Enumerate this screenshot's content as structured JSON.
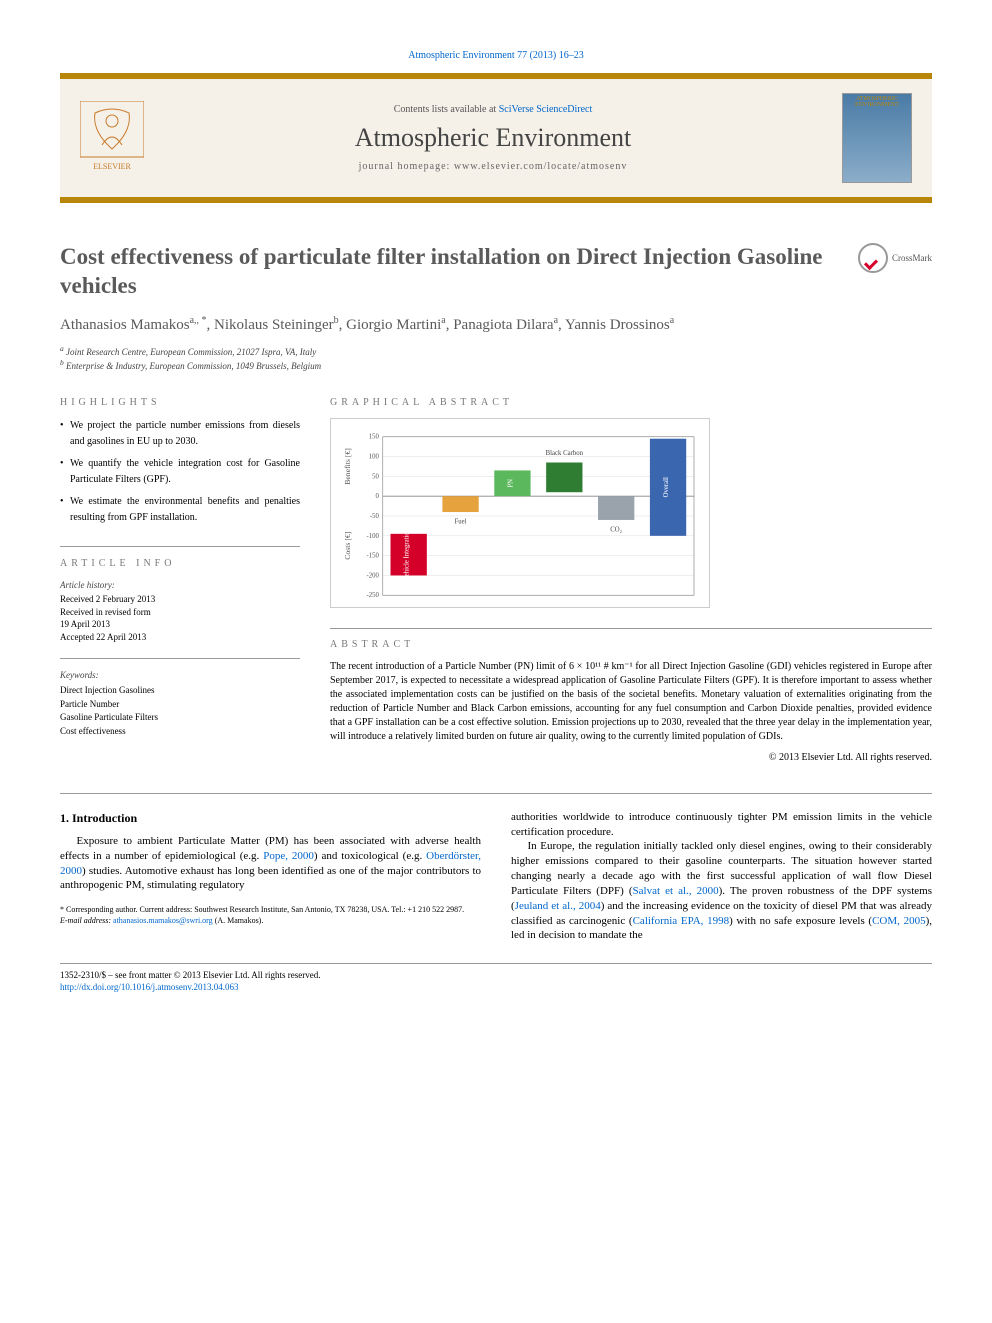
{
  "citation": {
    "journal_link_text": "Atmospheric Environment 77 (2013) 16–23"
  },
  "masthead": {
    "contents_prefix": "Contents lists available at ",
    "contents_link": "SciVerse ScienceDirect",
    "journal_name": "Atmospheric Environment",
    "homepage_prefix": "journal homepage: ",
    "homepage_url": "www.elsevier.com/locate/atmosenv",
    "cover_label": "ATMOSPHERIC ENVIRONMENT",
    "publisher_name": "ELSEVIER"
  },
  "crossmark_label": "CrossMark",
  "title": "Cost effectiveness of particulate filter installation on Direct Injection Gasoline vehicles",
  "authors_html": "Athanasios Mamakos",
  "authors": [
    {
      "name": "Athanasios Mamakos",
      "aff": "a,",
      "corr": "*"
    },
    {
      "name": "Nikolaus Steininger",
      "aff": "b"
    },
    {
      "name": "Giorgio Martini",
      "aff": "a"
    },
    {
      "name": "Panagiota Dilara",
      "aff": "a"
    },
    {
      "name": "Yannis Drossinos",
      "aff": "a"
    }
  ],
  "affiliations": [
    "a Joint Research Centre, European Commission, 21027 Ispra, VA, Italy",
    "b Enterprise & Industry, European Commission, 1049 Brussels, Belgium"
  ],
  "highlights_head": "HIGHLIGHTS",
  "highlights": [
    "We project the particle number emissions from diesels and gasolines in EU up to 2030.",
    "We quantify the vehicle integration cost for Gasoline Particulate Filters (GPF).",
    "We estimate the environmental benefits and penalties resulting from GPF installation."
  ],
  "graphical_head": "GRAPHICAL ABSTRACT",
  "chart": {
    "type": "floating-bar",
    "ylabel_top": "Benefits [€]",
    "ylabel_bottom": "Costs [€]",
    "ylim": [
      -250,
      150
    ],
    "ytick_step": 50,
    "yticks": [
      -250,
      -200,
      -150,
      -100,
      -50,
      0,
      50,
      100,
      150
    ],
    "background_color": "#ffffff",
    "grid_color": "#dddddd",
    "axis_color": "#888888",
    "label_fontsize": 8,
    "tick_fontsize": 7,
    "bars": [
      {
        "label": "Vehicle Integration",
        "low": -200,
        "high": -95,
        "color": "#d4002a",
        "text_color": "#ffffff",
        "label_inside": true
      },
      {
        "label": "Fuel",
        "low": -40,
        "high": 0,
        "color": "#e6a23c",
        "text_color": "#444444",
        "label_inside": false,
        "label_y_offset": 8
      },
      {
        "label": "PN",
        "low": 0,
        "high": 65,
        "color": "#5cb85c",
        "text_color": "#ffffff",
        "label_inside": true
      },
      {
        "label": "Black Carbon",
        "low": 10,
        "high": 85,
        "color": "#2e7d32",
        "text_color": "#444444",
        "label_inside": false,
        "label_y_offset": -8
      },
      {
        "label": "CO₂",
        "low": -60,
        "high": 0,
        "color": "#9aa3ab",
        "text_color": "#444444",
        "label_inside": false,
        "label_y_offset": 8
      },
      {
        "label": "Overall",
        "low": -100,
        "high": 145,
        "color": "#3a66b0",
        "text_color": "#ffffff",
        "label_inside": true
      }
    ],
    "bar_gap": 0.15,
    "bar_width_rel": 0.7
  },
  "article_info_head": "ARTICLE INFO",
  "article_info": {
    "history_h": "Article history:",
    "received": "Received 2 February 2013",
    "revised": "Received in revised form",
    "revised_date": "19 April 2013",
    "accepted": "Accepted 22 April 2013"
  },
  "keywords_h": "Keywords:",
  "keywords": [
    "Direct Injection Gasolines",
    "Particle Number",
    "Gasoline Particulate Filters",
    "Cost effectiveness"
  ],
  "abstract_head": "ABSTRACT",
  "abstract": "The recent introduction of a Particle Number (PN) limit of 6 × 10¹¹ # km⁻¹ for all Direct Injection Gasoline (GDI) vehicles registered in Europe after September 2017, is expected to necessitate a widespread application of Gasoline Particulate Filters (GPF). It is therefore important to assess whether the associated implementation costs can be justified on the basis of the societal benefits. Monetary valuation of externalities originating from the reduction of Particle Number and Black Carbon emissions, accounting for any fuel consumption and Carbon Dioxide penalties, provided evidence that a GPF installation can be a cost effective solution. Emission projections up to 2030, revealed that the three year delay in the implementation year, will introduce a relatively limited burden on future air quality, owing to the currently limited population of GDIs.",
  "copyright": "© 2013 Elsevier Ltd. All rights reserved.",
  "intro_head": "1. Introduction",
  "intro_p1_a": "Exposure to ambient Particulate Matter (PM) has been associated with adverse health effects in a number of epidemiological (e.g. ",
  "intro_p1_link1": "Pope, 2000",
  "intro_p1_b": ") and toxicological (e.g. ",
  "intro_p1_link2": "Oberdörster, 2000",
  "intro_p1_c": ") studies. Automotive exhaust has long been identified as one of the major contributors to anthropogenic PM, stimulating regulatory",
  "intro_p2": "authorities worldwide to introduce continuously tighter PM emission limits in the vehicle certification procedure.",
  "intro_p3_a": "In Europe, the regulation initially tackled only diesel engines, owing to their considerably higher emissions compared to their gasoline counterparts. The situation however started changing nearly a decade ago with the first successful application of wall flow Diesel Particulate Filters (DPF) (",
  "intro_p3_link1": "Salvat et al., 2000",
  "intro_p3_b": "). The proven robustness of the DPF systems (",
  "intro_p3_link2": "Jeuland et al., 2004",
  "intro_p3_c": ") and the increasing evidence on the toxicity of diesel PM that was already classified as carcinogenic (",
  "intro_p3_link3": "California EPA, 1998",
  "intro_p3_d": ") with no safe exposure levels (",
  "intro_p3_link4": "COM, 2005",
  "intro_p3_e": "), led in decision to mandate the",
  "footnote": {
    "corr": "* Corresponding author. Current address: Southwest Research Institute, San Antonio, TX 78238, USA. Tel.: +1 210 522 2987.",
    "email_prefix": "E-mail address: ",
    "email": "athanasios.mamakos@swri.org",
    "email_suffix": " (A. Mamakos)."
  },
  "footer": {
    "issn": "1352-2310/$ – see front matter © 2013 Elsevier Ltd. All rights reserved.",
    "doi_prefix": "http://dx.doi.org/",
    "doi": "10.1016/j.atmosenv.2013.04.063"
  }
}
